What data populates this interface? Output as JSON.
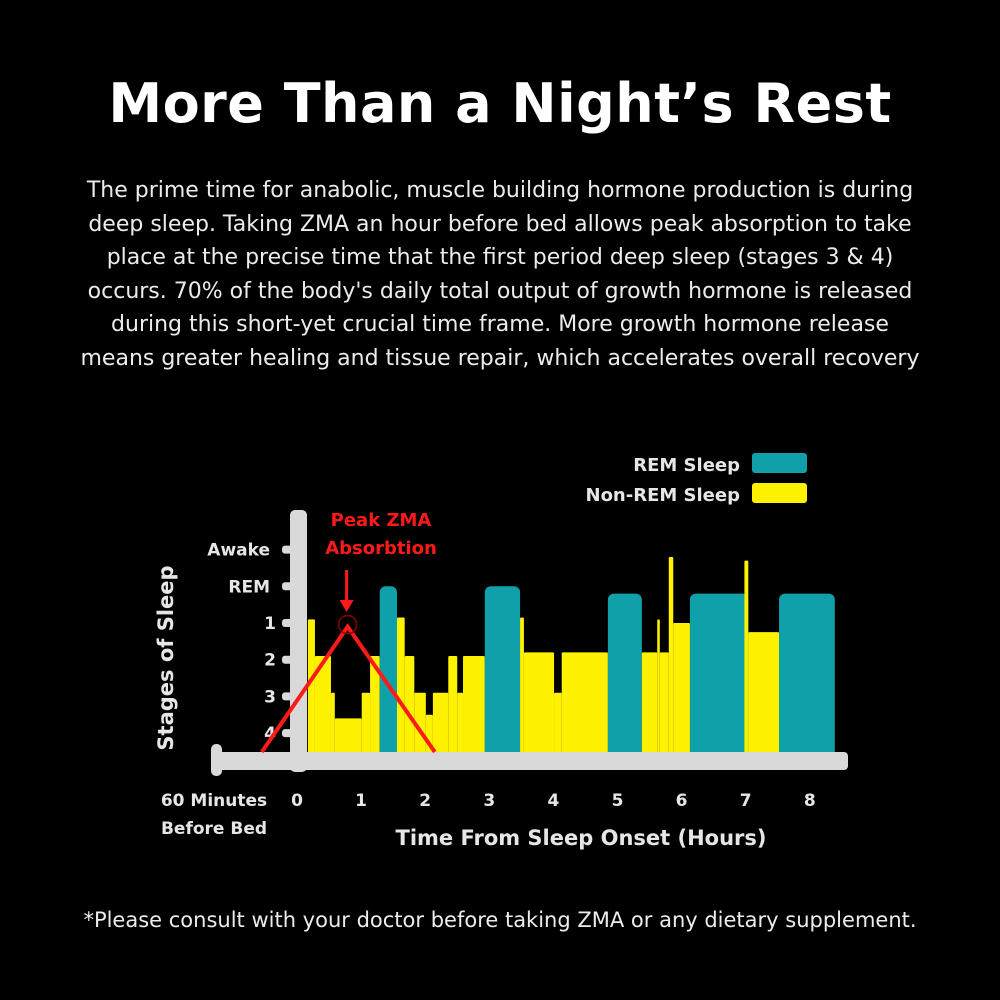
{
  "title": "More Than a Night’s Rest",
  "body_lines": [
    "The prime time for anabolic, muscle building hormone production is during",
    "deep sleep. Taking ZMA an hour before bed allows peak absorption to take",
    "place at the precise time that the first period deep sleep (stages 3 & 4)",
    "occurs. 70% of the body's daily total output of growth hormone is released",
    "during this short-yet crucial time frame. More growth hormone release",
    "means greater healing and tissue repair, which accelerates overall recovery"
  ],
  "footer": "*Please consult with your doctor before taking ZMA or any dietary supplement.",
  "chart_data": {
    "type": "area",
    "xlabel": "Time From Sleep Onset (Hours)",
    "ylabel": "Stages of Sleep",
    "x_ticks": [
      "0",
      "1",
      "2",
      "3",
      "4",
      "5",
      "6",
      "7",
      "8"
    ],
    "x_pre_label": [
      "60 Minutes",
      "Before Bed"
    ],
    "y_ticks": [
      {
        "label": "Awake",
        "stage": -1
      },
      {
        "label": "REM",
        "stage": 0
      },
      {
        "label": "1",
        "stage": 1
      },
      {
        "label": "2",
        "stage": 2
      },
      {
        "label": "3",
        "stage": 3
      },
      {
        "label": "4",
        "stage": 4
      }
    ],
    "xlim": [
      -1.3,
      8.4
    ],
    "legend": {
      "position": "top-right",
      "items": [
        {
          "name": "REM Sleep",
          "color": "#0fa0aa"
        },
        {
          "name": "Non-REM Sleep",
          "color": "#fff200"
        }
      ]
    },
    "colors": {
      "rem": "#0fa0aa",
      "nonrem": "#fff200",
      "axis": "#d9d9d9",
      "annotation": "#ff1a1a"
    },
    "segments": [
      {
        "start": 0.17,
        "end": 0.28,
        "stage": 0.9,
        "type": "nonrem"
      },
      {
        "start": 0.28,
        "end": 0.53,
        "stage": 1.9,
        "type": "nonrem"
      },
      {
        "start": 0.53,
        "end": 0.59,
        "stage": 2.9,
        "type": "nonrem"
      },
      {
        "start": 0.59,
        "end": 1.01,
        "stage": 3.6,
        "type": "nonrem"
      },
      {
        "start": 1.01,
        "end": 1.14,
        "stage": 2.9,
        "type": "nonrem"
      },
      {
        "start": 1.14,
        "end": 1.29,
        "stage": 1.9,
        "type": "nonrem"
      },
      {
        "start": 1.29,
        "end": 1.56,
        "stage": 0,
        "type": "rem"
      },
      {
        "start": 1.56,
        "end": 1.68,
        "stage": 0.85,
        "type": "nonrem"
      },
      {
        "start": 1.68,
        "end": 1.83,
        "stage": 1.9,
        "type": "nonrem"
      },
      {
        "start": 1.83,
        "end": 2.01,
        "stage": 2.9,
        "type": "nonrem"
      },
      {
        "start": 2.01,
        "end": 2.12,
        "stage": 3.5,
        "type": "nonrem"
      },
      {
        "start": 2.12,
        "end": 2.36,
        "stage": 2.9,
        "type": "nonrem"
      },
      {
        "start": 2.36,
        "end": 2.5,
        "stage": 1.9,
        "type": "nonrem"
      },
      {
        "start": 2.5,
        "end": 2.59,
        "stage": 2.9,
        "type": "nonrem"
      },
      {
        "start": 2.59,
        "end": 2.93,
        "stage": 1.9,
        "type": "nonrem"
      },
      {
        "start": 2.93,
        "end": 3.48,
        "stage": 0,
        "type": "rem"
      },
      {
        "start": 3.48,
        "end": 3.54,
        "stage": 0.85,
        "type": "nonrem"
      },
      {
        "start": 3.54,
        "end": 4.01,
        "stage": 1.8,
        "type": "nonrem"
      },
      {
        "start": 4.01,
        "end": 4.13,
        "stage": 2.9,
        "type": "nonrem"
      },
      {
        "start": 4.13,
        "end": 4.85,
        "stage": 1.8,
        "type": "nonrem"
      },
      {
        "start": 4.85,
        "end": 5.38,
        "stage": 0.2,
        "type": "rem"
      },
      {
        "start": 5.38,
        "end": 5.62,
        "stage": 1.8,
        "type": "nonrem"
      },
      {
        "start": 5.62,
        "end": 5.66,
        "stage": 0.9,
        "type": "nonrem"
      },
      {
        "start": 5.66,
        "end": 5.8,
        "stage": 1.8,
        "type": "nonrem"
      },
      {
        "start": 5.8,
        "end": 5.87,
        "stage": -0.8,
        "type": "nonrem"
      },
      {
        "start": 5.87,
        "end": 6.13,
        "stage": 1.0,
        "type": "nonrem"
      },
      {
        "start": 6.13,
        "end": 7.04,
        "stage": 0.2,
        "type": "rem"
      },
      {
        "start": 6.98,
        "end": 7.04,
        "stage": -0.7,
        "type": "nonrem"
      },
      {
        "start": 7.04,
        "end": 7.52,
        "stage": 1.25,
        "type": "nonrem"
      },
      {
        "start": 7.52,
        "end": 8.39,
        "stage": 0.2,
        "type": "rem"
      }
    ],
    "annotation": {
      "label_lines": [
        "Peak ZMA",
        "Absorbtion"
      ],
      "peak": {
        "hour": 0.79,
        "stage": 1.1
      },
      "rise_start_hour": -0.55,
      "fall_end_hour": 2.15
    }
  }
}
